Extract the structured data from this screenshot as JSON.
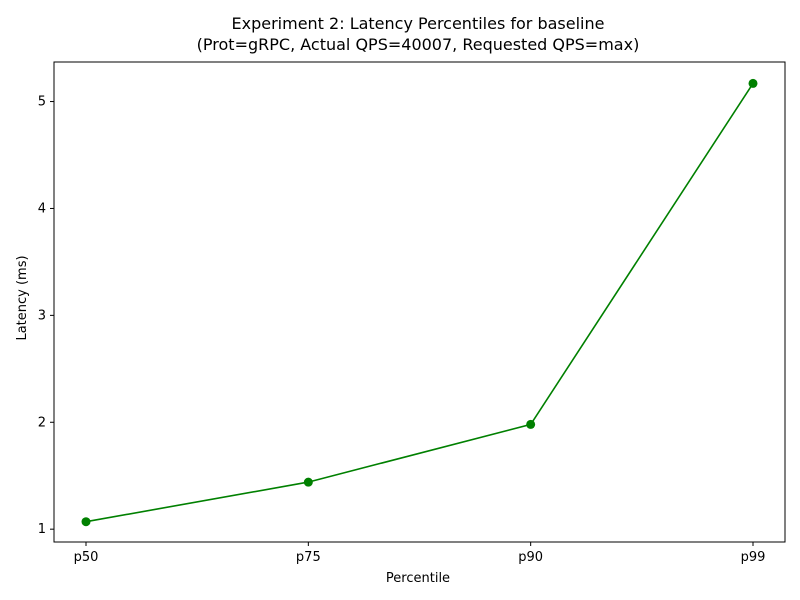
{
  "chart_data": {
    "type": "line",
    "title_line1": "Experiment 2: Latency Percentiles for baseline",
    "title_line2": "(Prot=gRPC, Actual QPS=40007, Requested QPS=max)",
    "xlabel": "Percentile",
    "ylabel": "Latency (ms)",
    "categories": [
      "p50",
      "p75",
      "p90",
      "p99"
    ],
    "values": [
      1.07,
      1.44,
      1.98,
      5.17
    ],
    "ylim": [
      0.88,
      5.37
    ],
    "yticks": [
      1,
      2,
      3,
      4,
      5
    ],
    "grid": false,
    "legend": "none",
    "color": "#008000",
    "marker": "circle"
  }
}
